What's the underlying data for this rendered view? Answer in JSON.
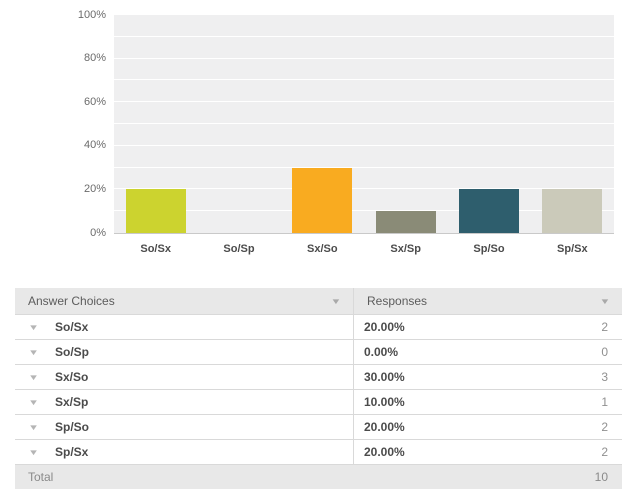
{
  "chart_data": {
    "type": "bar",
    "title": "",
    "xlabel": "",
    "ylabel": "",
    "categories": [
      "So/Sx",
      "So/Sp",
      "Sx/So",
      "Sx/Sp",
      "Sp/So",
      "Sp/Sx"
    ],
    "values": [
      20,
      0,
      30,
      10,
      20,
      20
    ],
    "bar_colors": [
      "#ccd32f",
      null,
      "#f9ab20",
      "#8a8b77",
      "#2e5e6d",
      "#cbcaba"
    ],
    "ylim": [
      0,
      100
    ],
    "yticks": [
      {
        "value": 0,
        "label": "0%"
      },
      {
        "value": 20,
        "label": "20%"
      },
      {
        "value": 40,
        "label": "40%"
      },
      {
        "value": 60,
        "label": "60%"
      },
      {
        "value": 80,
        "label": "80%"
      },
      {
        "value": 100,
        "label": "100%"
      }
    ],
    "gridline_interval": 10,
    "grid": true,
    "legend": "none"
  },
  "table": {
    "columns": [
      {
        "label": "Answer Choices"
      },
      {
        "label": "Responses"
      }
    ],
    "rows": [
      {
        "choice": "So/Sx",
        "percent": "20.00%",
        "count": "2"
      },
      {
        "choice": "So/Sp",
        "percent": "0.00%",
        "count": "0"
      },
      {
        "choice": "Sx/So",
        "percent": "30.00%",
        "count": "3"
      },
      {
        "choice": "Sx/Sp",
        "percent": "10.00%",
        "count": "1"
      },
      {
        "choice": "Sp/So",
        "percent": "20.00%",
        "count": "2"
      },
      {
        "choice": "Sp/Sx",
        "percent": "20.00%",
        "count": "2"
      }
    ],
    "total": {
      "label": "Total",
      "count": "10"
    }
  },
  "icons": {
    "sort": "▼",
    "expand": "▼"
  },
  "colors": {
    "plot_bg": "#efeff0",
    "grid": "#ffffff",
    "axis_line": "#c9c9c9",
    "header_bg": "#e8e8e8",
    "row_border": "#d9d9d9"
  }
}
